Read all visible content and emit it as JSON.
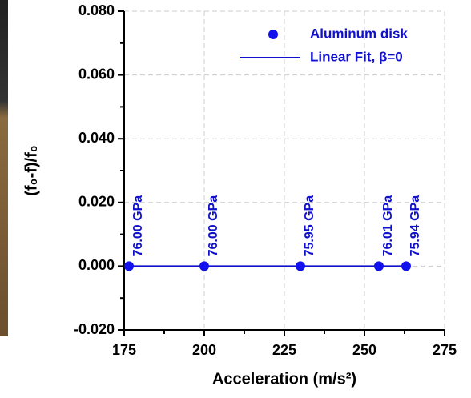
{
  "chart_data": {
    "type": "scatter",
    "xlabel": "Acceleration (m/s²)",
    "ylabel": "(f₀-f)/f₀",
    "xlim": [
      175,
      275
    ],
    "xticks": [
      175,
      200,
      225,
      250,
      275
    ],
    "ylim": [
      -0.02,
      0.08
    ],
    "yticks": [
      {
        "value": -0.02,
        "label": "-0.020"
      },
      {
        "value": 0,
        "label": "0.000"
      },
      {
        "value": 0.02,
        "label": "0.020"
      },
      {
        "value": 0.04,
        "label": "0.040"
      },
      {
        "value": 0.06,
        "label": "0.060"
      },
      {
        "value": 0.08,
        "label": "0.080"
      }
    ],
    "grid": true,
    "legend": "upper right",
    "series": [
      {
        "name": "Aluminum disk",
        "color": "#1111ee",
        "kind": "markers",
        "x": [
          176.5,
          200,
          230,
          254.5,
          263
        ],
        "values": [
          0,
          0,
          0,
          0,
          0
        ],
        "point_labels": [
          "76.00 GPa",
          "76.00 GPa",
          "75.95 GPa",
          "76.01 GPa",
          "75.94 GPa"
        ]
      },
      {
        "name": "Linear Fit, β=0",
        "color": "#1111cc",
        "kind": "line",
        "x": [
          176.5,
          263
        ],
        "values": [
          0,
          0
        ]
      }
    ]
  }
}
